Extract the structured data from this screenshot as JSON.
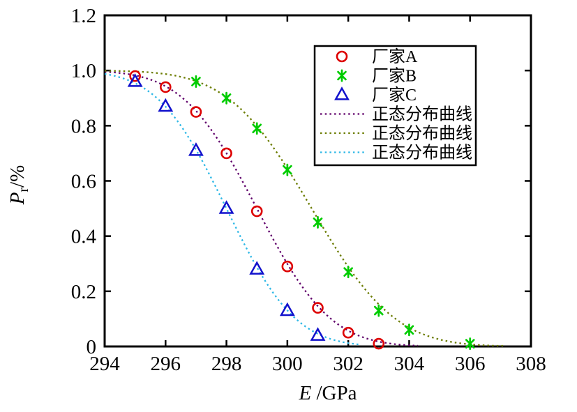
{
  "figure": {
    "background": "#ffffff",
    "frame_color": "#000000"
  },
  "chart_data": {
    "type": "scatter",
    "title": "",
    "xlabel": {
      "symbol": "E",
      "unit": " /GPa"
    },
    "ylabel": {
      "symbol": "P",
      "subscript": "r",
      "unit": "/%"
    },
    "xlim": [
      294,
      308
    ],
    "ylim": [
      0,
      1.2
    ],
    "x_ticks": [
      {
        "value": 294,
        "label": "294"
      },
      {
        "value": 296,
        "label": "296"
      },
      {
        "value": 298,
        "label": "298"
      },
      {
        "value": 300,
        "label": "300"
      },
      {
        "value": 302,
        "label": "302"
      },
      {
        "value": 304,
        "label": "304"
      },
      {
        "value": 306,
        "label": "306"
      },
      {
        "value": 308,
        "label": "308"
      }
    ],
    "y_ticks": [
      {
        "value": 0,
        "label": "0"
      },
      {
        "value": 0.2,
        "label": "0.2"
      },
      {
        "value": 0.4,
        "label": "0.4"
      },
      {
        "value": 0.6,
        "label": "0.6"
      },
      {
        "value": 0.8,
        "label": "0.8"
      },
      {
        "value": 1.0,
        "label": "1.0"
      },
      {
        "value": 1.2,
        "label": "1.2"
      }
    ],
    "grid": false,
    "legend_position": "upper-right",
    "series": [
      {
        "name": "厂家A",
        "marker": "circle",
        "color": "#dd0000",
        "points": [
          [
            295,
            0.98
          ],
          [
            296,
            0.94
          ],
          [
            297,
            0.85
          ],
          [
            298,
            0.7
          ],
          [
            299,
            0.49
          ],
          [
            300,
            0.29
          ],
          [
            301,
            0.14
          ],
          [
            302,
            0.05
          ],
          [
            303,
            0.01
          ]
        ]
      },
      {
        "name": "厂家B",
        "marker": "asterisk",
        "color": "#00cc00",
        "points": [
          [
            297,
            0.96
          ],
          [
            298,
            0.9
          ],
          [
            299,
            0.79
          ],
          [
            300,
            0.64
          ],
          [
            301,
            0.45
          ],
          [
            302,
            0.27
          ],
          [
            303,
            0.13
          ],
          [
            304,
            0.06
          ],
          [
            306,
            0.01
          ]
        ]
      },
      {
        "name": "厂家C",
        "marker": "triangle",
        "color": "#1111cc",
        "points": [
          [
            295,
            0.96
          ],
          [
            296,
            0.87
          ],
          [
            297,
            0.71
          ],
          [
            298,
            0.5
          ],
          [
            299,
            0.28
          ],
          [
            300,
            0.13
          ],
          [
            301,
            0.04
          ]
        ]
      }
    ],
    "curves": [
      {
        "name": "正态分布曲线",
        "style": "dashed",
        "color": "#60006b",
        "distribution": "normal-survival",
        "mean": 299.0,
        "sd": 1.9,
        "x_range": [
          294,
          304.3
        ]
      },
      {
        "name": "正态分布曲线",
        "style": "dashed",
        "color": "#6b7c00",
        "distribution": "normal-survival",
        "mean": 300.8,
        "sd": 2.15,
        "x_range": [
          294,
          307.2
        ]
      },
      {
        "name": "正态分布曲线",
        "style": "dashed",
        "color": "#2eb8e6",
        "distribution": "normal-survival",
        "mean": 298.0,
        "sd": 1.78,
        "x_range": [
          294,
          302.4
        ]
      }
    ]
  }
}
